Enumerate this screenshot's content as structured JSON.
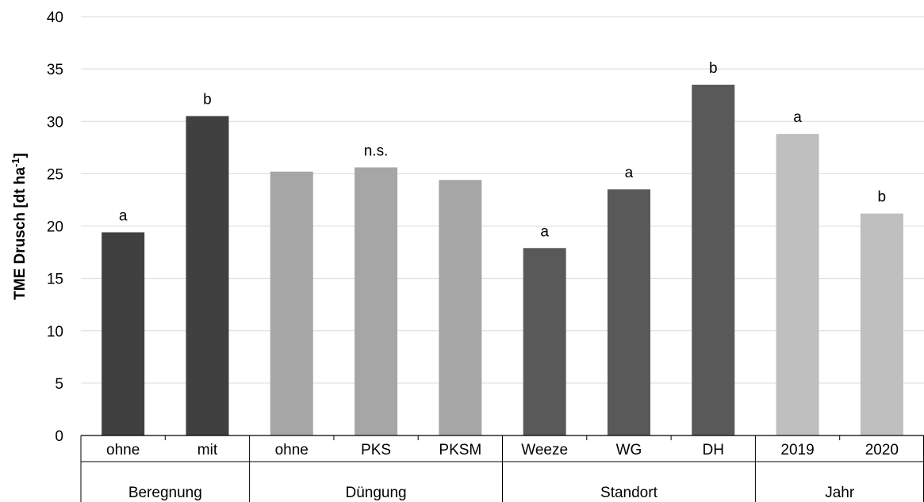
{
  "chart_data": {
    "type": "bar",
    "ylabel": "TME Drusch [dt ha",
    "ylabel_sup": "-1",
    "ylabel_end": "]",
    "ylim": [
      0,
      40
    ],
    "yticks": [
      "0",
      "5",
      "10",
      "15",
      "20",
      "25",
      "30",
      "35",
      "40"
    ],
    "grid": true,
    "groups": [
      {
        "name": "Beregnung",
        "color": "#404040",
        "bars": [
          {
            "category": "ohne",
            "value": 19.4,
            "label": "a"
          },
          {
            "category": "mit",
            "value": 30.5,
            "label": "b"
          }
        ]
      },
      {
        "name": "Düngung",
        "color": "#a6a6a6",
        "bars": [
          {
            "category": "ohne",
            "value": 25.2,
            "label": ""
          },
          {
            "category": "PKS",
            "value": 25.6,
            "label": "n.s."
          },
          {
            "category": "PKSM",
            "value": 24.4,
            "label": ""
          }
        ]
      },
      {
        "name": "Standort",
        "color": "#595959",
        "bars": [
          {
            "category": "Weeze",
            "value": 17.9,
            "label": "a"
          },
          {
            "category": "WG",
            "value": 23.5,
            "label": "a"
          },
          {
            "category": "DH",
            "value": 33.5,
            "label": "b"
          }
        ]
      },
      {
        "name": "Jahr",
        "color": "#bfbfbf",
        "bars": [
          {
            "category": "2019",
            "value": 28.8,
            "label": "a"
          },
          {
            "category": "2020",
            "value": 21.2,
            "label": "b"
          }
        ]
      }
    ]
  }
}
